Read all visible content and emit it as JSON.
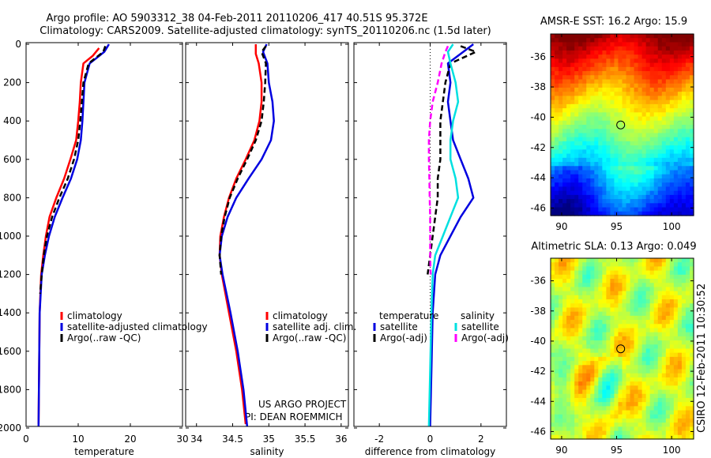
{
  "header": {
    "line1": "Argo profile: AO 5903312_38 04-Feb-2011 20110206_417 40.51S 95.372E",
    "line2": "Climatology: CARS2009. Satellite-adjusted climatology: synTS_20110206.nc (1.5d later)"
  },
  "credits": {
    "project": "US ARGO PROJECT",
    "pi": "PI: DEAN ROEMMICH",
    "stamp": "CSIRO 12-Feb-2011 10:30:52"
  },
  "colors": {
    "climatology": "#ff0000",
    "satellite": "#0000e0",
    "argo": "#000000",
    "sal_satellite": "#00e0e0",
    "sal_argo": "#ff00ff"
  },
  "chart_data": [
    {
      "type": "line",
      "xlabel": "temperature",
      "ylim": [
        2000,
        0
      ],
      "xlim": [
        0,
        30
      ],
      "yticks": [
        0,
        200,
        400,
        600,
        800,
        1000,
        1200,
        1400,
        1600,
        1800,
        2000
      ],
      "xticks": [
        0,
        10,
        20,
        30
      ],
      "legend": [
        "climatology",
        "satellite-adjusted climatology",
        "Argo(..raw -QC)"
      ],
      "series": [
        {
          "name": "climatology",
          "color": "#ff0000",
          "style": "solid",
          "x": [
            14.0,
            12.8,
            11.0,
            10.5,
            10.3,
            10.0,
            9.6,
            8.5,
            7.3,
            5.8,
            4.5,
            3.8,
            3.3,
            2.9,
            2.6,
            2.5,
            2.4
          ],
          "y": [
            20,
            60,
            100,
            200,
            300,
            400,
            500,
            600,
            700,
            800,
            900,
            1000,
            1100,
            1200,
            1400,
            1700,
            1980
          ]
        },
        {
          "name": "satellite-adjusted climatology",
          "color": "#0000e0",
          "style": "solid",
          "x": [
            15.9,
            15.0,
            12.2,
            11.2,
            11.0,
            10.8,
            10.5,
            9.8,
            8.6,
            7.0,
            5.5,
            4.4,
            3.6,
            3.0,
            2.6,
            2.5,
            2.4
          ],
          "y": [
            0,
            40,
            100,
            200,
            300,
            400,
            500,
            600,
            700,
            800,
            900,
            1000,
            1100,
            1200,
            1400,
            1700,
            1990
          ]
        },
        {
          "name": "Argo(..raw -QC)",
          "color": "#000000",
          "style": "dashed",
          "x": [
            15.2,
            14.8,
            12.0,
            11.0,
            10.7,
            10.4,
            10.0,
            9.2,
            8.0,
            6.4,
            5.0,
            4.0,
            3.4,
            3.0,
            2.7
          ],
          "y": [
            10,
            40,
            100,
            200,
            300,
            400,
            500,
            600,
            700,
            800,
            900,
            1000,
            1100,
            1200,
            1300
          ]
        }
      ]
    },
    {
      "type": "line",
      "xlabel": "salinity",
      "ylim": [
        2000,
        0
      ],
      "xlim": [
        33.85,
        36.1
      ],
      "xticks": [
        34,
        34.5,
        35,
        35.5,
        36
      ],
      "legend": [
        "climatology",
        "satellite adj. clim.",
        "Argo(..raw -QC)"
      ],
      "series": [
        {
          "name": "climatology",
          "color": "#ff0000",
          "style": "solid",
          "x": [
            34.82,
            34.82,
            34.86,
            34.9,
            34.9,
            34.87,
            34.8,
            34.68,
            34.55,
            34.45,
            34.38,
            34.33,
            34.32,
            34.35,
            34.45,
            34.55,
            34.63,
            34.68
          ],
          "y": [
            0,
            50,
            100,
            200,
            300,
            400,
            500,
            600,
            700,
            800,
            900,
            1000,
            1100,
            1200,
            1400,
            1600,
            1800,
            1980
          ]
        },
        {
          "name": "satellite adj. clim.",
          "color": "#0000e0",
          "style": "solid",
          "x": [
            34.97,
            34.92,
            34.98,
            35.0,
            35.05,
            35.07,
            35.03,
            34.9,
            34.72,
            34.55,
            34.43,
            34.35,
            34.32,
            34.36,
            34.47,
            34.57,
            34.65,
            34.7
          ],
          "y": [
            0,
            40,
            100,
            200,
            300,
            400,
            500,
            600,
            700,
            800,
            900,
            1000,
            1100,
            1200,
            1400,
            1600,
            1800,
            1990
          ]
        },
        {
          "name": "Argo(..raw -QC)",
          "color": "#000000",
          "style": "dashed",
          "x": [
            34.96,
            34.9,
            34.96,
            34.95,
            34.93,
            34.9,
            34.82,
            34.7,
            34.57,
            34.46,
            34.39,
            34.34,
            34.32,
            34.34
          ],
          "y": [
            10,
            40,
            100,
            200,
            300,
            400,
            500,
            600,
            700,
            800,
            900,
            1000,
            1100,
            1200
          ]
        }
      ]
    },
    {
      "type": "line",
      "xlabel": "difference from climatology",
      "ylim": [
        2000,
        0
      ],
      "xlim": [
        -3,
        3
      ],
      "xticks": [
        -2,
        0,
        2
      ],
      "legend_title_left": "temperature",
      "legend_title_right": "salinity",
      "legend": [
        "satellite",
        "Argo(-adj)",
        "satellite",
        "Argo(-adj)"
      ],
      "series": [
        {
          "name": "satellite",
          "group": "temperature",
          "color": "#0000e0",
          "style": "solid",
          "x": [
            1.7,
            1.3,
            0.7,
            0.8,
            0.7,
            0.8,
            0.9,
            1.2,
            1.5,
            1.7,
            1.2,
            0.8,
            0.4,
            0.2,
            0.1,
            0.05,
            0.0
          ],
          "y": [
            0,
            40,
            100,
            200,
            300,
            400,
            500,
            600,
            700,
            800,
            900,
            1000,
            1100,
            1200,
            1400,
            1700,
            1990
          ]
        },
        {
          "name": "Argo(-adj)",
          "group": "temperature",
          "color": "#000000",
          "style": "dashed",
          "x": [
            1.2,
            1.8,
            0.8,
            0.6,
            0.5,
            0.4,
            0.4,
            0.4,
            0.3,
            0.3,
            0.2,
            0.1,
            0.0,
            -0.1
          ],
          "y": [
            10,
            40,
            100,
            200,
            300,
            400,
            500,
            600,
            700,
            800,
            900,
            1000,
            1100,
            1200
          ]
        },
        {
          "name": "satellite",
          "group": "salinity",
          "color": "#00e0e0",
          "style": "solid",
          "x": [
            0.9,
            0.7,
            0.8,
            1.0,
            1.1,
            0.9,
            0.8,
            0.8,
            1.0,
            1.1,
            0.8,
            0.5,
            0.2,
            0.1,
            0.05,
            0.0,
            -0.05
          ],
          "y": [
            0,
            40,
            100,
            200,
            300,
            400,
            500,
            600,
            700,
            800,
            900,
            1000,
            1100,
            1200,
            1400,
            1700,
            1990
          ]
        },
        {
          "name": "Argo(-adj)",
          "group": "salinity",
          "color": "#ff00ff",
          "style": "dashed",
          "x": [
            0.7,
            0.6,
            0.45,
            0.3,
            0.1,
            0.0,
            -0.05,
            -0.05,
            -0.03,
            -0.02,
            0.0,
            0.0,
            0.0,
            0.02
          ],
          "y": [
            10,
            40,
            100,
            200,
            300,
            400,
            500,
            600,
            700,
            800,
            900,
            1000,
            1100,
            1200
          ]
        }
      ]
    },
    {
      "type": "heatmap",
      "title": "AMSR-E SST: 16.2 Argo: 15.9",
      "xlim": [
        89,
        102
      ],
      "ylim": [
        -46.5,
        -34.5
      ],
      "xticks": [
        90,
        95,
        100
      ],
      "yticks": [
        -36,
        -38,
        -40,
        -42,
        -44,
        -46
      ],
      "marker": {
        "x": 95.37,
        "y": -40.51
      }
    },
    {
      "type": "heatmap",
      "title": "Altimetric SLA: 0.13 Argo: 0.049",
      "xlim": [
        89,
        102
      ],
      "ylim": [
        -46.5,
        -34.5
      ],
      "xticks": [
        90,
        95,
        100
      ],
      "yticks": [
        -36,
        -38,
        -40,
        -42,
        -44,
        -46
      ],
      "marker": {
        "x": 95.37,
        "y": -40.51
      }
    }
  ]
}
